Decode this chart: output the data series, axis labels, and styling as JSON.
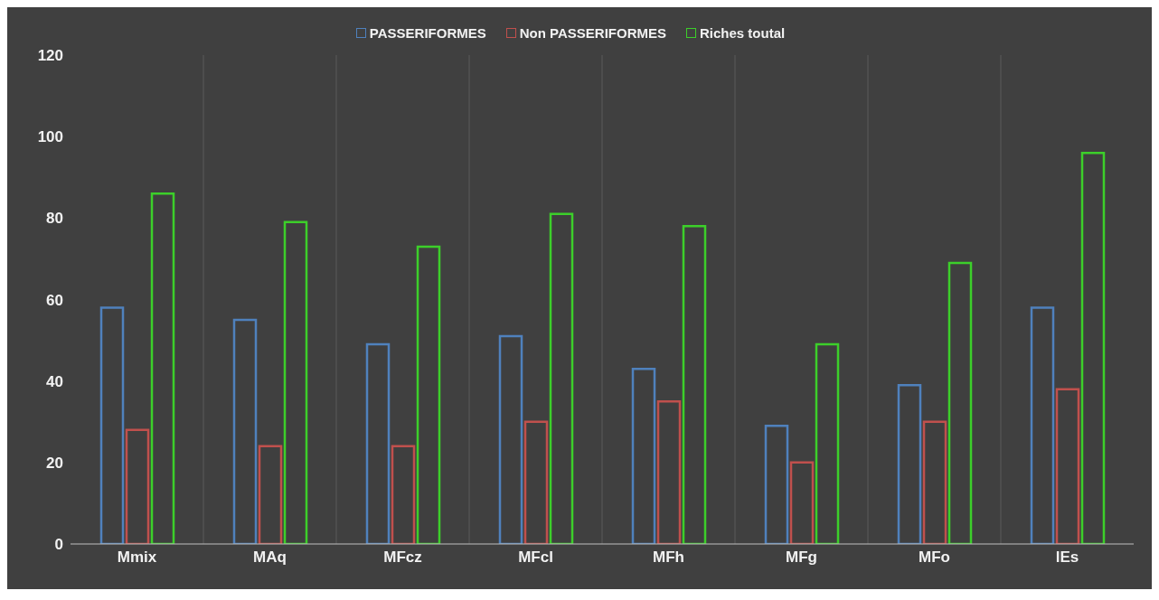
{
  "chart_data": {
    "type": "bar",
    "categories": [
      "Mmix",
      "MAq",
      "MFcz",
      "MFcl",
      "MFh",
      "MFg",
      "MFo",
      "lEs"
    ],
    "series": [
      {
        "name": "PASSERIFORMES",
        "color": "#4f81bd",
        "values": [
          58,
          55,
          49,
          51,
          43,
          29,
          39,
          58
        ]
      },
      {
        "name": "Non PASSERIFORMES",
        "color": "#c0504d",
        "values": [
          28,
          24,
          24,
          30,
          35,
          20,
          30,
          38
        ]
      },
      {
        "name": "Riches toutal",
        "color": "#3ccf2a",
        "values": [
          86,
          79,
          73,
          81,
          78,
          49,
          69,
          96
        ]
      }
    ],
    "ylim": [
      0,
      120
    ],
    "yticks": [
      0,
      20,
      40,
      60,
      80,
      100,
      120
    ],
    "grid": "x",
    "legend": "top"
  }
}
